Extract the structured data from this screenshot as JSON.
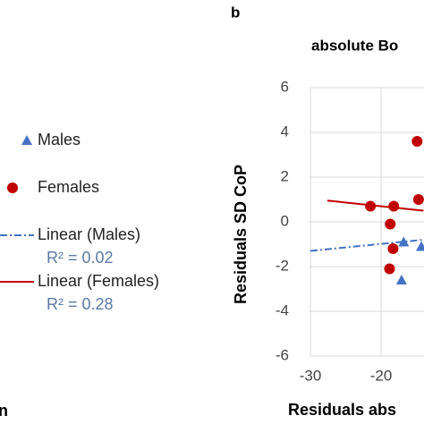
{
  "panel_label": "b",
  "left_fragment": "n",
  "chart_data": {
    "type": "scatter",
    "title": "absolute Bo",
    "x_label": "Residuals abs",
    "y_label": "Residuals SD CoP",
    "xlim": [
      -30,
      -14
    ],
    "xticks": [
      -30,
      -20
    ],
    "ylim": [
      -6,
      6
    ],
    "yticks": [
      -6,
      -4,
      -2,
      0,
      2,
      4,
      6
    ],
    "grid": true,
    "series": [
      {
        "name": "Males",
        "color": "#4472c4",
        "marker": "triangle",
        "x": [
          -16.8,
          -17.1,
          -14.3
        ],
        "values": [
          -0.9,
          -2.6,
          -1.1
        ]
      },
      {
        "name": "Females",
        "color": "#c00000",
        "marker": "circle",
        "x": [
          -21.5,
          -18.2,
          -18.7,
          -18.3,
          -18.8,
          -14.9,
          -14.7
        ],
        "values": [
          0.7,
          0.7,
          -0.1,
          -1.2,
          -2.1,
          3.6,
          1.0
        ]
      }
    ],
    "trendlines": [
      {
        "name": "Linear (Males)",
        "r2_label": "R² = 0.02",
        "color": "#4472c4",
        "dash": "8 3 2 3",
        "x": [
          -30,
          -14
        ],
        "values": [
          -1.3,
          -0.8
        ]
      },
      {
        "name": "Linear (Females)",
        "r2_label": "R² = 0.28",
        "color": "#c00000",
        "dash": "",
        "x": [
          -27.6,
          -14
        ],
        "values": [
          0.95,
          0.5
        ]
      }
    ]
  }
}
